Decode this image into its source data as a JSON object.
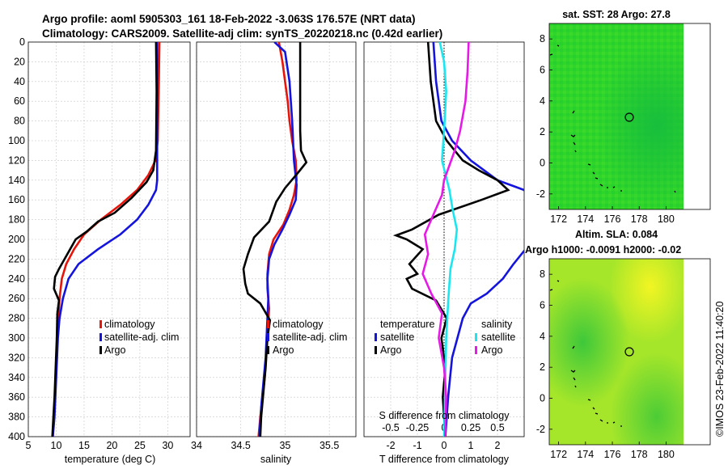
{
  "header": {
    "line1": "Argo profile: aoml 5905303_161 18-Feb-2022 -3.063S 176.57E (NRT data)",
    "line2": "Climatology: CARS2009. Satellite-adj clim: synTS_20220218.nc (0.42d earlier)"
  },
  "colors": {
    "climatology": "#e6140a",
    "satellite": "#1414dc",
    "argo": "#000000",
    "sat_salinity": "#19e6f0",
    "argo_salinity": "#e619e6"
  },
  "depth_ticks": [
    "0",
    "20",
    "40",
    "60",
    "80",
    "100",
    "120",
    "140",
    "160",
    "180",
    "200",
    "220",
    "240",
    "260",
    "280",
    "300",
    "320",
    "340",
    "360",
    "380",
    "400"
  ],
  "chart_data": [
    {
      "type": "line",
      "name": "temperature",
      "xlabel": "temperature (deg C)",
      "xlim": [
        5,
        34
      ],
      "ylim": [
        400,
        0
      ],
      "xticks": [
        "5",
        "10",
        "15",
        "20",
        "25",
        "30"
      ],
      "xtick_values": [
        5,
        10,
        15,
        20,
        25,
        30
      ],
      "legend": [
        "climatology",
        "satellite-adj. clim",
        "Argo"
      ],
      "series": [
        {
          "name": "climatology",
          "color": "climatology",
          "points": [
            [
              28.5,
              0
            ],
            [
              28.4,
              40
            ],
            [
              28.2,
              100
            ],
            [
              27.8,
              120
            ],
            [
              26.5,
              135
            ],
            [
              24.5,
              150
            ],
            [
              21.5,
              165
            ],
            [
              18,
              180
            ],
            [
              15,
              195
            ],
            [
              13.2,
              210
            ],
            [
              11.8,
              225
            ],
            [
              11,
              240
            ],
            [
              10.6,
              260
            ],
            [
              10.4,
              280
            ],
            [
              10.2,
              300
            ],
            [
              9.9,
              340
            ],
            [
              9.6,
              380
            ],
            [
              9.4,
              400
            ]
          ]
        },
        {
          "name": "satellite-adj. clim",
          "color": "satellite",
          "points": [
            [
              28.1,
              0
            ],
            [
              28.1,
              140
            ],
            [
              27.9,
              150
            ],
            [
              26.5,
              165
            ],
            [
              24.5,
              180
            ],
            [
              21.5,
              195
            ],
            [
              17.5,
              210
            ],
            [
              14,
              225
            ],
            [
              12.2,
              240
            ],
            [
              11.2,
              260
            ],
            [
              10.6,
              280
            ],
            [
              10.3,
              300
            ],
            [
              10,
              340
            ],
            [
              9.7,
              380
            ],
            [
              9.4,
              400
            ]
          ]
        },
        {
          "name": "Argo",
          "color": "argo",
          "points": [
            [
              27.9,
              0
            ],
            [
              28,
              50
            ],
            [
              27.9,
              110
            ],
            [
              27.4,
              130
            ],
            [
              26.2,
              142
            ],
            [
              23.5,
              158
            ],
            [
              20.5,
              173
            ],
            [
              17.5,
              182
            ],
            [
              15.5,
              192
            ],
            [
              13.5,
              200
            ],
            [
              12.5,
              210
            ],
            [
              11.5,
              220
            ],
            [
              10.5,
              230
            ],
            [
              9.8,
              238
            ],
            [
              9.6,
              250
            ],
            [
              10.5,
              262
            ],
            [
              10.2,
              275
            ],
            [
              10.1,
              300
            ],
            [
              9.9,
              330
            ],
            [
              9.7,
              360
            ],
            [
              9.5,
              380
            ],
            [
              9.3,
              400
            ]
          ]
        }
      ]
    },
    {
      "type": "line",
      "name": "salinity",
      "xlabel": "salinity",
      "xlim": [
        34,
        35.8
      ],
      "ylim": [
        400,
        0
      ],
      "xticks": [
        "34",
        "34.5",
        "35",
        "35.5"
      ],
      "xtick_values": [
        34,
        34.5,
        35,
        35.5
      ],
      "legend": [
        "climatology",
        "satellite-adj. clim",
        "Argo"
      ],
      "series": [
        {
          "name": "climatology",
          "color": "climatology",
          "points": [
            [
              34.93,
              0
            ],
            [
              34.97,
              20
            ],
            [
              35.0,
              40
            ],
            [
              35.03,
              60
            ],
            [
              35.05,
              80
            ],
            [
              35.08,
              100
            ],
            [
              35.12,
              120
            ],
            [
              35.13,
              140
            ],
            [
              35.1,
              155
            ],
            [
              35.05,
              170
            ],
            [
              34.98,
              185
            ],
            [
              34.87,
              200
            ],
            [
              34.82,
              215
            ],
            [
              34.8,
              235
            ],
            [
              34.8,
              250
            ],
            [
              34.82,
              270
            ],
            [
              34.8,
              300
            ],
            [
              34.77,
              340
            ],
            [
              34.72,
              380
            ],
            [
              34.7,
              400
            ]
          ]
        },
        {
          "name": "satellite-adj. clim",
          "color": "satellite",
          "points": [
            [
              34.88,
              0
            ],
            [
              35.0,
              10
            ],
            [
              35.05,
              40
            ],
            [
              35.08,
              80
            ],
            [
              35.1,
              120
            ],
            [
              35.13,
              145
            ],
            [
              35.12,
              160
            ],
            [
              35.05,
              175
            ],
            [
              34.97,
              190
            ],
            [
              34.88,
              205
            ],
            [
              34.82,
              220
            ],
            [
              34.8,
              240
            ],
            [
              34.81,
              260
            ],
            [
              34.8,
              280
            ],
            [
              34.78,
              320
            ],
            [
              34.73,
              370
            ],
            [
              34.71,
              400
            ]
          ]
        },
        {
          "name": "Argo",
          "color": "argo",
          "points": [
            [
              35.17,
              0
            ],
            [
              35.17,
              90
            ],
            [
              35.18,
              110
            ],
            [
              35.24,
              122
            ],
            [
              35.15,
              132
            ],
            [
              35.0,
              148
            ],
            [
              34.9,
              162
            ],
            [
              34.82,
              182
            ],
            [
              34.65,
              198
            ],
            [
              34.58,
              215
            ],
            [
              34.53,
              230
            ],
            [
              34.55,
              245
            ],
            [
              34.58,
              255
            ],
            [
              34.72,
              265
            ],
            [
              34.83,
              282
            ],
            [
              34.8,
              300
            ],
            [
              34.78,
              330
            ],
            [
              34.75,
              360
            ],
            [
              34.73,
              380
            ],
            [
              34.72,
              400
            ]
          ]
        }
      ]
    },
    {
      "type": "line",
      "name": "difference",
      "xlabel": "T difference from climatology",
      "xlabel2": "S difference from climatology",
      "xlim": [
        -3,
        3
      ],
      "ylim": [
        400,
        0
      ],
      "xticks": [
        "-2",
        "-1",
        "0",
        "1",
        "2"
      ],
      "xtick_values": [
        -2,
        -1,
        0,
        1,
        2
      ],
      "s_xticks": [
        "-0.5",
        "-0.25",
        "0",
        "0.25",
        "0.5"
      ],
      "s_xtick_values": [
        -0.5,
        -0.25,
        0,
        0.25,
        0.5
      ],
      "legend_t_title": "temperature",
      "legend_s_title": "salinity",
      "legend_t": [
        "satellite",
        "Argo"
      ],
      "legend_s": [
        "satellite",
        "Argo"
      ],
      "series": [
        {
          "name": "T satellite",
          "color": "satellite",
          "points": [
            [
              -0.4,
              0
            ],
            [
              -0.3,
              40
            ],
            [
              -0.1,
              80
            ],
            [
              0.3,
              100
            ],
            [
              1,
              120
            ],
            [
              2,
              140
            ],
            [
              3,
              150
            ],
            [
              3.2,
              160
            ]
          ]
        },
        {
          "name": "T satellite deep",
          "color": "satellite",
          "points": [
            [
              3.2,
              205
            ],
            [
              2.6,
              225
            ],
            [
              2.2,
              240
            ],
            [
              1.6,
              255
            ],
            [
              1.0,
              265
            ],
            [
              0.7,
              280
            ],
            [
              0.5,
              300
            ],
            [
              0.3,
              320
            ],
            [
              0.15,
              360
            ],
            [
              0.05,
              400
            ]
          ]
        },
        {
          "name": "T Argo",
          "color": "argo",
          "points": [
            [
              -0.6,
              0
            ],
            [
              -0.5,
              40
            ],
            [
              -0.3,
              80
            ],
            [
              0.1,
              100
            ],
            [
              0.7,
              120
            ],
            [
              1.3,
              130
            ],
            [
              2.0,
              140
            ],
            [
              2.4,
              150
            ],
            [
              1.4,
              160
            ],
            [
              -0.2,
              175
            ],
            [
              -1.2,
              190
            ],
            [
              -1.8,
              196
            ],
            [
              -1.4,
              200
            ],
            [
              -0.8,
              210
            ],
            [
              -1.3,
              225
            ],
            [
              -1.0,
              235
            ],
            [
              -1.4,
              240
            ],
            [
              -1.2,
              250
            ],
            [
              -0.3,
              262
            ],
            [
              0.1,
              280
            ],
            [
              -0.1,
              300
            ],
            [
              0.05,
              330
            ],
            [
              -0.05,
              360
            ],
            [
              0.05,
              400
            ]
          ]
        },
        {
          "name": "S satellite",
          "color": "sat_salinity",
          "points": [
            [
              -0.04,
              0
            ],
            [
              0,
              20
            ],
            [
              0.02,
              50
            ],
            [
              0.0,
              90
            ],
            [
              -0.02,
              120
            ],
            [
              0.05,
              150
            ],
            [
              0.08,
              170
            ],
            [
              0.12,
              190
            ],
            [
              0.1,
              210
            ],
            [
              0.06,
              230
            ],
            [
              0.04,
              260
            ],
            [
              0.02,
              300
            ],
            [
              0.0,
              400
            ]
          ]
        },
        {
          "name": "S Argo",
          "color": "argo_salinity",
          "points": [
            [
              0.23,
              0
            ],
            [
              0.22,
              30
            ],
            [
              0.2,
              60
            ],
            [
              0.15,
              90
            ],
            [
              0.1,
              110
            ],
            [
              0.05,
              125
            ],
            [
              0.0,
              140
            ],
            [
              -0.02,
              155
            ],
            [
              -0.1,
              175
            ],
            [
              -0.18,
              195
            ],
            [
              -0.15,
              215
            ],
            [
              -0.2,
              235
            ],
            [
              -0.12,
              255
            ],
            [
              -0.02,
              275
            ],
            [
              -0.05,
              300
            ],
            [
              0.0,
              330
            ],
            [
              0.02,
              360
            ],
            [
              0.01,
              400
            ]
          ]
        }
      ]
    }
  ],
  "maps": {
    "sst": {
      "title": "sat. SST: 28 Argo: 27.8",
      "xticks": [
        "172",
        "174",
        "176",
        "178",
        "180"
      ],
      "yticks": [
        "8",
        "6",
        "4",
        "2",
        "0",
        "-2"
      ]
    },
    "sla": {
      "title1": "Altim. SLA: 0.084",
      "title2": "Argo h1000: -0.0091 h2000: -0.02",
      "xticks": [
        "172",
        "174",
        "176",
        "178",
        "180"
      ],
      "yticks": [
        "8",
        "6",
        "4",
        "2",
        "0",
        "-2"
      ]
    }
  },
  "credit": "©IMOS 23-Feb-2022 11:40:20"
}
